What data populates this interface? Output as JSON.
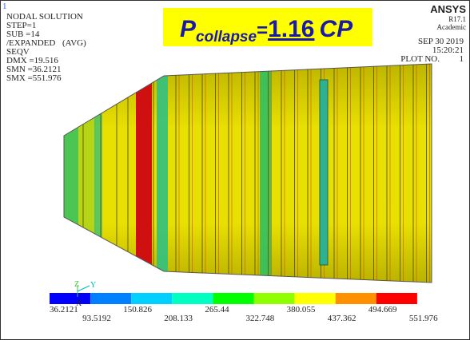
{
  "window": {
    "number": "1"
  },
  "info": {
    "lines": [
      "NODAL SOLUTION",
      "STEP=1",
      "SUB =14",
      "/EXPANDED",
      "SEQV",
      "DMX =19.516",
      "SMN =36.2121",
      "SMX =551.976"
    ],
    "avg": "(AVG)"
  },
  "brand": {
    "name": "ANSYS",
    "version": "R17.1",
    "edition": "Academic"
  },
  "stamp": {
    "date": "SEP 30 2019",
    "time": "15:20:21",
    "plot_label": "PLOT NO.",
    "plot_number": "1"
  },
  "title": {
    "symbol": "P",
    "subscript": "collapse",
    "equals": "=",
    "value": "1.16",
    "unit": "CP"
  },
  "triad": {
    "z": "Z",
    "y": "Y",
    "x": "X"
  },
  "legend": {
    "labels": [
      "36.2121",
      "93.5192",
      "150.826",
      "208.133",
      "265.44",
      "322.748",
      "380.055",
      "437.362",
      "494.669",
      "551.976"
    ],
    "colors": [
      "#0000ff",
      "#0080ff",
      "#00d0ff",
      "#00ffc0",
      "#00ff00",
      "#90ff00",
      "#ffff00",
      "#ff9000",
      "#ff0000"
    ]
  }
}
